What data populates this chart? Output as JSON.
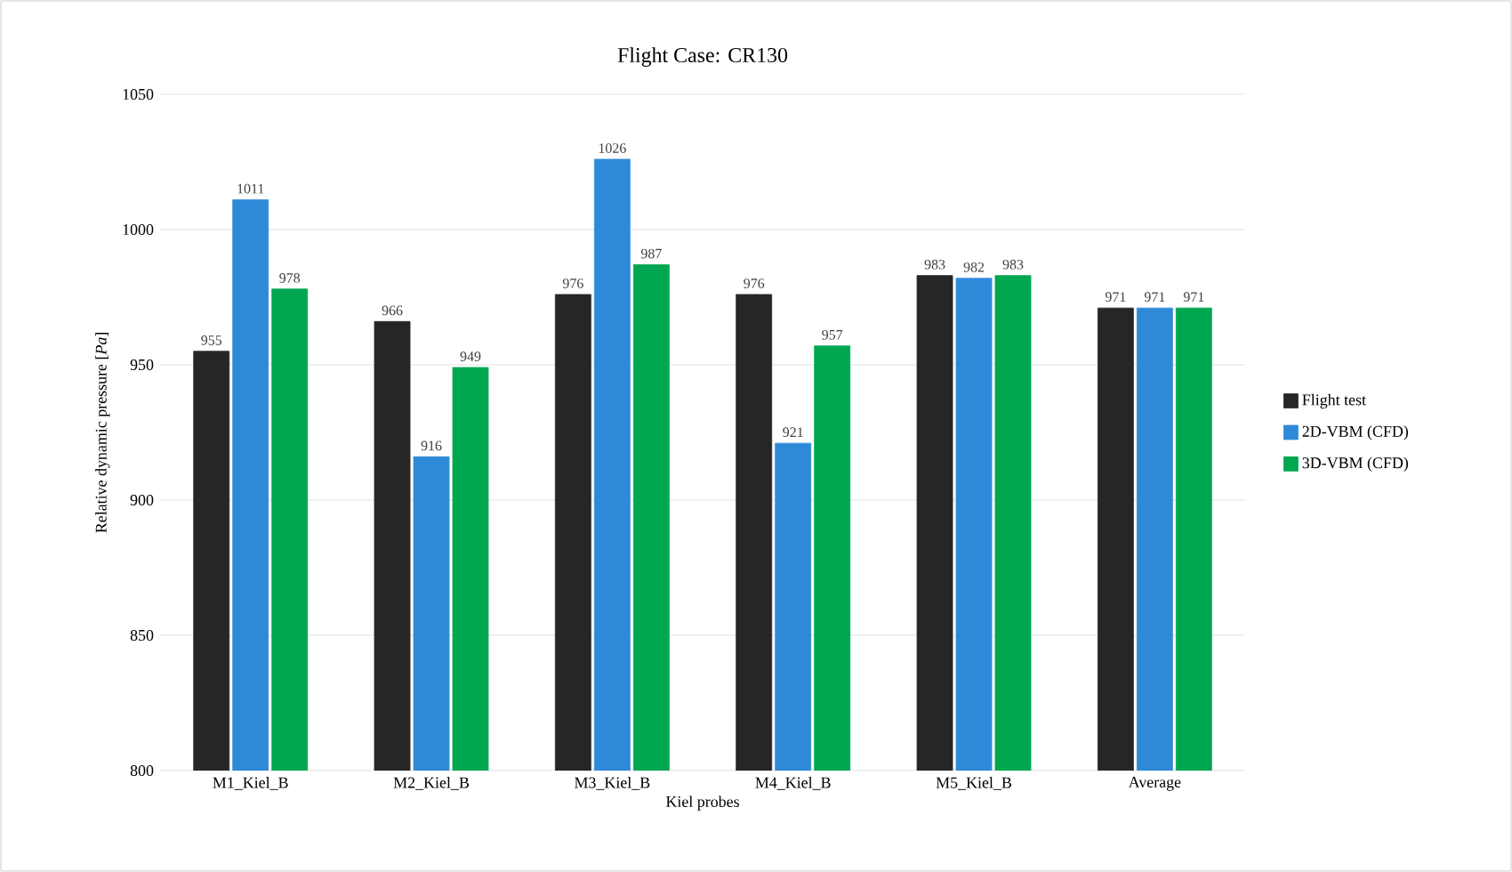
{
  "chart_data": {
    "type": "bar",
    "title": "Flight Case: CR130",
    "xlabel": "Kiel probes",
    "ylabel": "Relative dynamic pressure [*Pa*]",
    "categories": [
      "M1_Kiel_B",
      "M2_Kiel_B",
      "M3_Kiel_B",
      "M4_Kiel_B",
      "M5_Kiel_B",
      "Average"
    ],
    "series": [
      {
        "name": "Flight test",
        "color": "#262626",
        "values": [
          955,
          966,
          976,
          976,
          983,
          971
        ]
      },
      {
        "name": "2D-VBM (CFD)",
        "color": "#2e8ad8",
        "values": [
          1011,
          916,
          1026,
          921,
          982,
          971
        ]
      },
      {
        "name": "3D-VBM (CFD)",
        "color": "#00a650",
        "values": [
          978,
          949,
          987,
          957,
          983,
          971
        ]
      }
    ],
    "ylim": [
      800,
      1050
    ],
    "yticks": [
      800,
      850,
      900,
      950,
      1000,
      1050
    ],
    "grid": "y",
    "legend": "right",
    "data_labels": true
  }
}
